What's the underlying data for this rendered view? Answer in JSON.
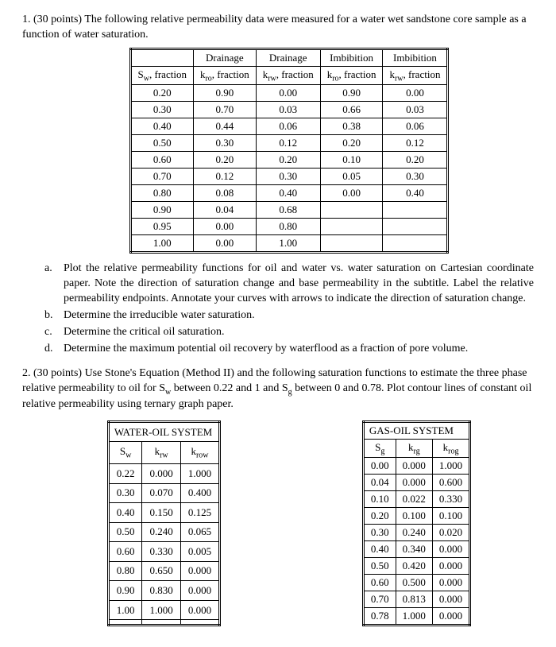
{
  "q1": {
    "number": "1. (30 points)",
    "intro": "The following relative permeability data were measured for a water wet sandstone core sample as a function of water saturation.",
    "table": {
      "headers_top": [
        "",
        "Drainage",
        "Drainage",
        "Imbibition",
        "Imbibition"
      ],
      "headers": [
        "Sw, fraction",
        "kro, fraction",
        "krw, fraction",
        "kro, fraction",
        "krw, fraction"
      ],
      "rows": [
        [
          "0.20",
          "0.90",
          "0.00",
          "0.90",
          "0.00"
        ],
        [
          "0.30",
          "0.70",
          "0.03",
          "0.66",
          "0.03"
        ],
        [
          "0.40",
          "0.44",
          "0.06",
          "0.38",
          "0.06"
        ],
        [
          "0.50",
          "0.30",
          "0.12",
          "0.20",
          "0.12"
        ],
        [
          "0.60",
          "0.20",
          "0.20",
          "0.10",
          "0.20"
        ],
        [
          "0.70",
          "0.12",
          "0.30",
          "0.05",
          "0.30"
        ],
        [
          "0.80",
          "0.08",
          "0.40",
          "0.00",
          "0.40"
        ],
        [
          "0.90",
          "0.04",
          "0.68",
          "",
          ""
        ],
        [
          "0.95",
          "0.00",
          "0.80",
          "",
          ""
        ],
        [
          "1.00",
          "0.00",
          "1.00",
          "",
          ""
        ]
      ]
    },
    "parts": {
      "a": "Plot the relative permeability functions for oil and water vs. water saturation on Cartesian coordinate paper. Note the direction of saturation change and base permeability in the subtitle. Label the relative permeability endpoints. Annotate your curves with arrows to indicate the direction of saturation change.",
      "b": "Determine the irreducible water saturation.",
      "c": "Determine the critical oil saturation.",
      "d": "Determine the maximum potential oil recovery by waterflood as a fraction of pore volume."
    }
  },
  "q2": {
    "number": "2. (30 points)",
    "intro": "Use Stone's Equation (Method II) and the following saturation functions to estimate the three phase relative permeability to oil for Sw between 0.22 and 1 and Sg between 0 and 0.78. Plot contour lines of constant oil relative permeability using ternary graph paper.",
    "water_oil": {
      "title": "WATER-OIL SYSTEM",
      "headers": [
        "Sw",
        "krw",
        "krow"
      ],
      "rows": [
        [
          "0.22",
          "0.000",
          "1.000"
        ],
        [
          "0.30",
          "0.070",
          "0.400"
        ],
        [
          "0.40",
          "0.150",
          "0.125"
        ],
        [
          "0.50",
          "0.240",
          "0.065"
        ],
        [
          "0.60",
          "0.330",
          "0.005"
        ],
        [
          "0.80",
          "0.650",
          "0.000"
        ],
        [
          "0.90",
          "0.830",
          "0.000"
        ],
        [
          "1.00",
          "1.000",
          "0.000"
        ],
        [
          "",
          "",
          ""
        ]
      ]
    },
    "gas_oil": {
      "title": "GAS-OIL SYSTEM",
      "headers": [
        "Sg",
        "krg",
        "krog"
      ],
      "rows": [
        [
          "0.00",
          "0.000",
          "1.000"
        ],
        [
          "0.04",
          "0.000",
          "0.600"
        ],
        [
          "0.10",
          "0.022",
          "0.330"
        ],
        [
          "0.20",
          "0.100",
          "0.100"
        ],
        [
          "0.30",
          "0.240",
          "0.020"
        ],
        [
          "0.40",
          "0.340",
          "0.000"
        ],
        [
          "0.50",
          "0.420",
          "0.000"
        ],
        [
          "0.60",
          "0.500",
          "0.000"
        ],
        [
          "0.70",
          "0.813",
          "0.000"
        ],
        [
          "0.78",
          "1.000",
          "0.000"
        ]
      ]
    }
  }
}
